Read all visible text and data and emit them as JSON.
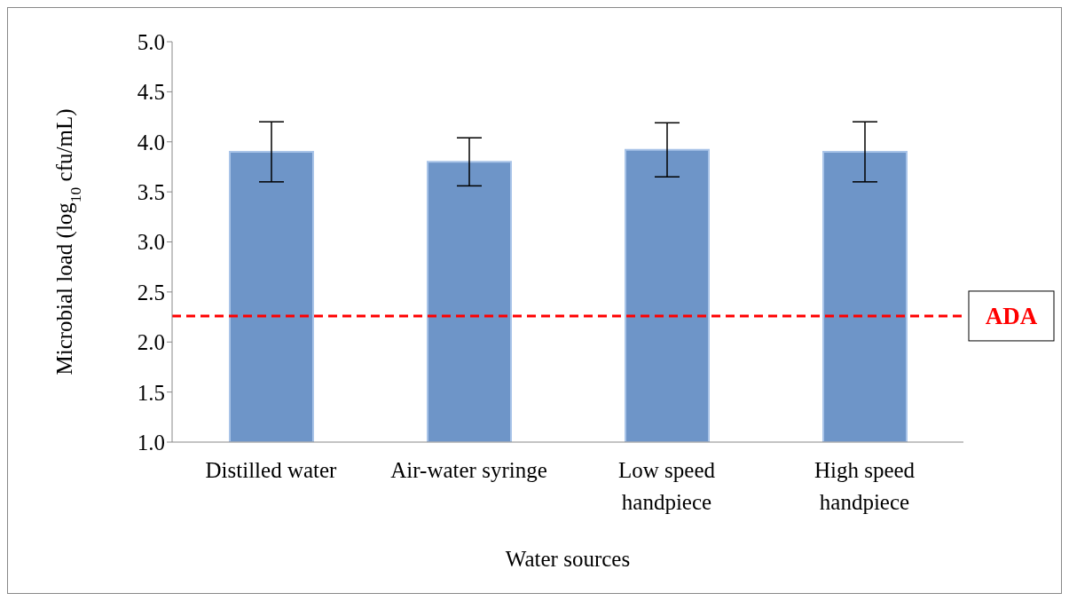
{
  "chart_data": {
    "type": "bar",
    "xlabel": "Water sources",
    "ylabel": "Microbial load (log$_{10}$ cfu/mL)",
    "categories": [
      "Distilled water",
      "Air-water syringe",
      "Low speed handpiece",
      "High speed handpiece"
    ],
    "values": [
      3.9,
      3.8,
      3.92,
      3.9
    ],
    "color": "#6e95c8",
    "errors": [
      0.3,
      0.24,
      0.27,
      0.3
    ],
    "ylim": [
      1.0,
      5.0
    ],
    "yticks": [
      {
        "value": 1,
        "label": "1.0"
      },
      {
        "value": 1.5,
        "label": "1.5"
      },
      {
        "value": 2,
        "label": "2.0"
      },
      {
        "value": 2.5,
        "label": "2.5"
      },
      {
        "value": 3,
        "label": "3.0"
      },
      {
        "value": 3.5,
        "label": "3.5"
      },
      {
        "value": 4,
        "label": "4.0"
      },
      {
        "value": 4.5,
        "label": "4.5"
      },
      {
        "value": 5,
        "label": "5.0"
      }
    ],
    "ref_lines": [
      {
        "axis": "y",
        "value": 2.26,
        "label": "ADA",
        "color": "#ff0000",
        "line_style": "dashed"
      }
    ],
    "grid": false,
    "legend": false
  }
}
